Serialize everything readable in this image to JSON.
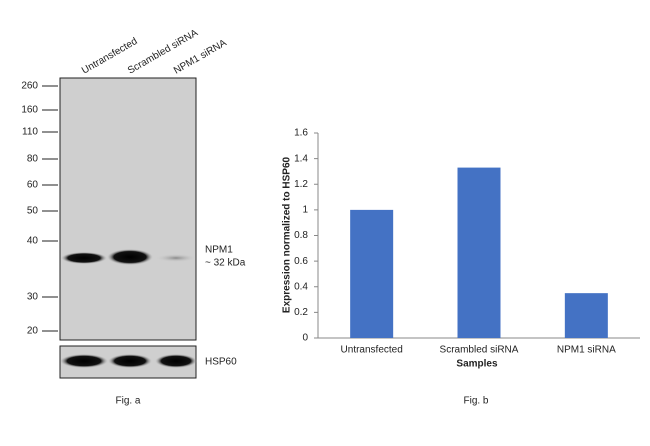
{
  "blot": {
    "lanes": [
      "Untransfected",
      "Scrambled siRNA",
      "NPM1 siRNA"
    ],
    "markers": [
      "260",
      "160",
      "110",
      "80",
      "60",
      "50",
      "40",
      "30",
      "20"
    ],
    "band_label": "NPM1",
    "band_size": "~ 32 kDa",
    "loading_label": "HSP60",
    "caption": "Fig. a"
  },
  "chart_data": {
    "type": "bar",
    "categories": [
      "Untransfected",
      "Scrambled siRNA",
      "NPM1 siRNA"
    ],
    "values": [
      1.0,
      1.33,
      0.35
    ],
    "color": "#4472c4",
    "ylim": [
      0,
      1.6
    ],
    "yticks": [
      0,
      0.2,
      0.4,
      0.6,
      0.8,
      1,
      1.2,
      1.4,
      1.6
    ],
    "ylabel": "Expression normalized to HSP60",
    "xlabel": "Samples",
    "caption": "Fig. b"
  }
}
